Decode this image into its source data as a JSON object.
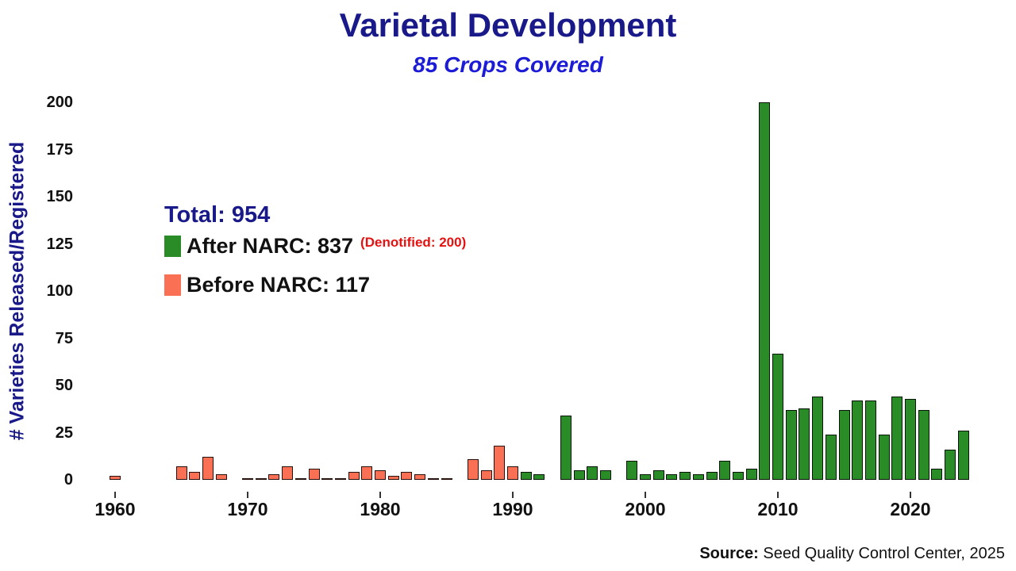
{
  "chart_data": {
    "type": "bar",
    "title": "Varietal Development",
    "subtitle": "85 Crops Covered",
    "ylabel": "# Varieties Released/Registered",
    "xlabel": "",
    "ylim": [
      0,
      200
    ],
    "yticks": [
      0,
      25,
      50,
      75,
      100,
      125,
      150,
      175,
      200
    ],
    "xticks": [
      1960,
      1970,
      1980,
      1990,
      2000,
      2010,
      2020
    ],
    "grid": false,
    "legend": {
      "position": "upper-left",
      "total_label": "Total: 954",
      "after_label": "After NARC: 837",
      "denotified_label": "(Denotified: 200)",
      "before_label": "Before NARC: 117"
    },
    "colors": {
      "before_bar": "#FA7054",
      "after_bar": "#2A8C26",
      "title": "#191989",
      "subtitle": "#1C1CD6",
      "denotified": "#E51212"
    },
    "series": [
      {
        "name": "Before NARC",
        "color_key": "before_bar",
        "points": {
          "1960": 2,
          "1965": 7,
          "1966": 4,
          "1967": 12,
          "1968": 3,
          "1970": 1,
          "1971": 1,
          "1972": 3,
          "1973": 7,
          "1974": 1,
          "1975": 6,
          "1976": 1,
          "1977": 1,
          "1978": 4,
          "1979": 7,
          "1980": 5,
          "1981": 2,
          "1982": 4,
          "1983": 3,
          "1984": 1,
          "1985": 1,
          "1987": 11,
          "1988": 5,
          "1989": 18,
          "1990": 7
        }
      },
      {
        "name": "After NARC",
        "color_key": "after_bar",
        "points": {
          "1991": 4,
          "1992": 3,
          "1994": 34,
          "1995": 5,
          "1996": 7,
          "1997": 5,
          "1999": 10,
          "2000": 3,
          "2001": 5,
          "2002": 3,
          "2003": 4,
          "2004": 3,
          "2005": 4,
          "2006": 10,
          "2007": 4,
          "2008": 6,
          "2009": 200,
          "2010": 67,
          "2011": 37,
          "2012": 38,
          "2013": 44,
          "2014": 24,
          "2015": 37,
          "2016": 42,
          "2017": 42,
          "2018": 24,
          "2019": 44,
          "2020": 43,
          "2021": 37,
          "2022": 6,
          "2023": 16,
          "2024": 26
        }
      }
    ],
    "source": {
      "label": "Source:",
      "text": " Seed Quality Control Center, 2025"
    }
  }
}
